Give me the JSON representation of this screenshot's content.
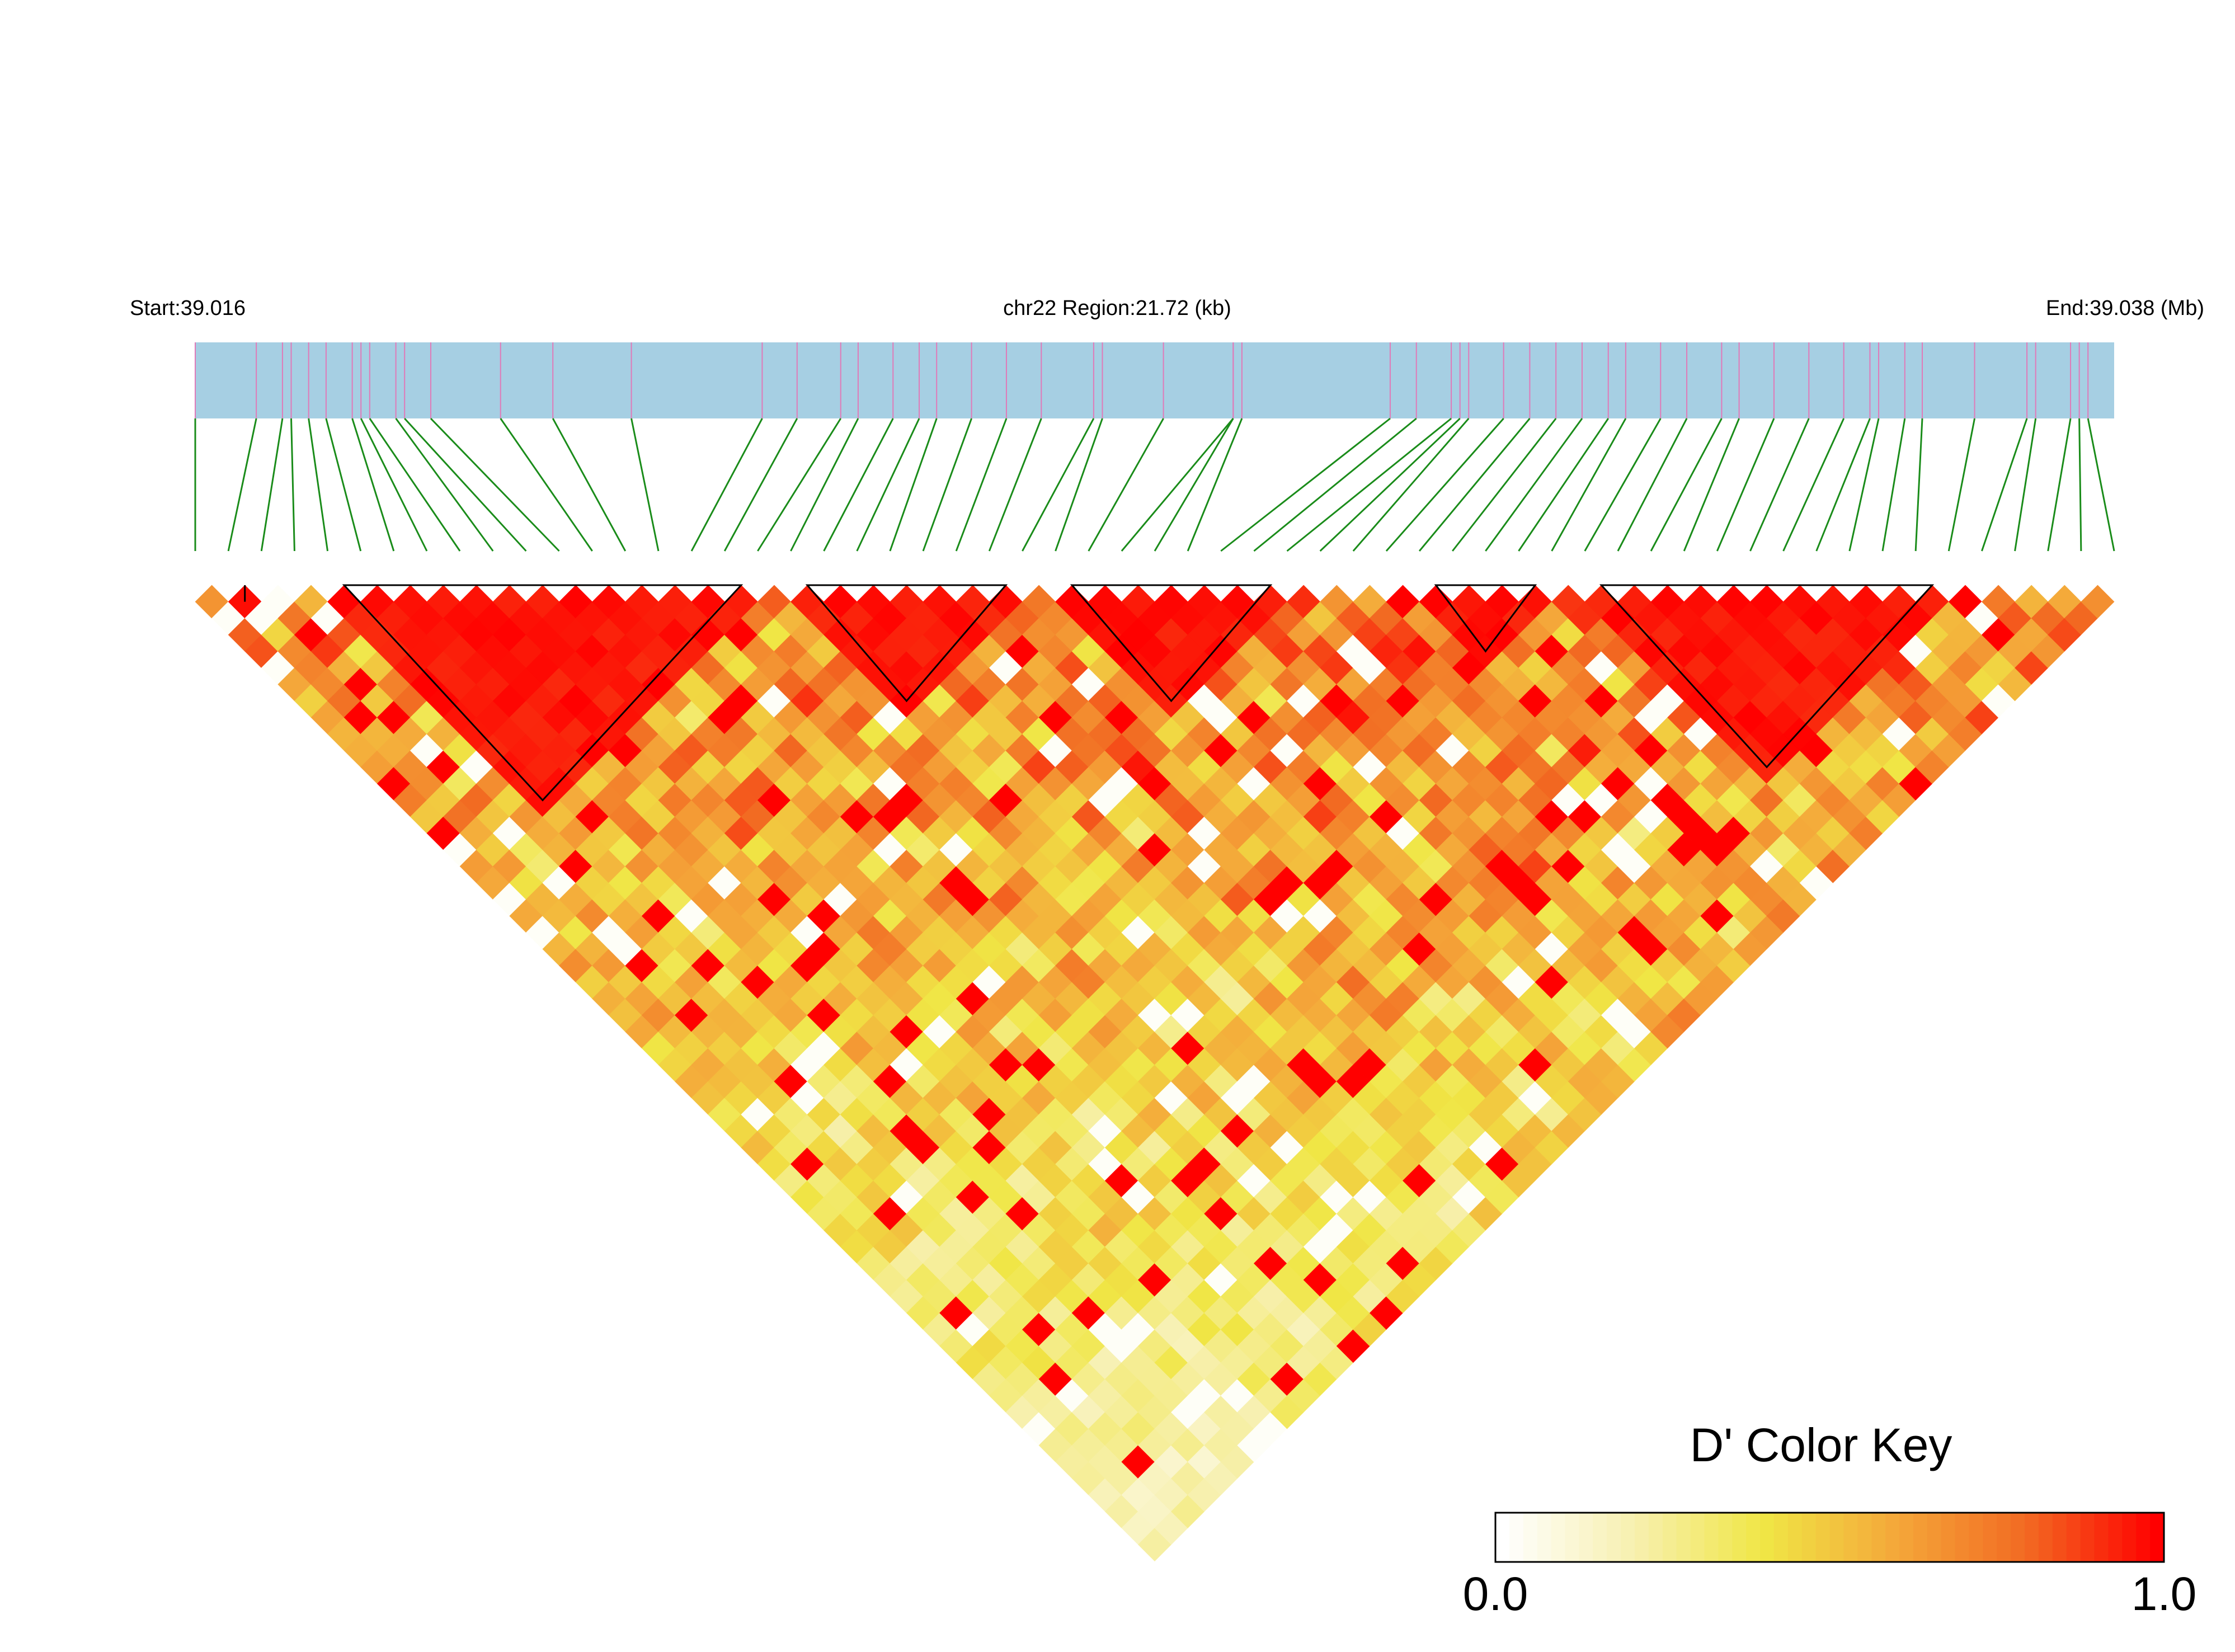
{
  "header": {
    "start_label": "Start:39.016",
    "region_label": "chr22 Region:21.72 (kb)",
    "end_label": "End:39.038 (Mb)"
  },
  "chart_data": {
    "type": "heatmap",
    "subtype": "linkage-disequilibrium-triangle",
    "metric": "D'",
    "chromosome": "chr22",
    "region_start_mb": 39.016,
    "region_end_mb": 39.038,
    "region_length_kb": 21.72,
    "snp_count": 59,
    "snp_positions_mb": [
      39.016,
      39.0167,
      39.017,
      39.0171,
      39.0173,
      39.0175,
      39.0178,
      39.0179,
      39.018,
      39.0183,
      39.0184,
      39.0187,
      39.0195,
      39.0201,
      39.021,
      39.0225,
      39.0229,
      39.0234,
      39.0236,
      39.024,
      39.0243,
      39.0245,
      39.0249,
      39.0253,
      39.0257,
      39.0263,
      39.0264,
      39.0271,
      39.0279,
      39.0279,
      39.028,
      39.0297,
      39.03,
      39.0304,
      39.0305,
      39.0306,
      39.031,
      39.0313,
      39.0316,
      39.0319,
      39.0322,
      39.0324,
      39.0328,
      39.0331,
      39.0335,
      39.0337,
      39.0341,
      39.0345,
      39.0349,
      39.0352,
      39.0353,
      39.0356,
      39.0358,
      39.0364,
      39.037,
      39.0371,
      39.0375,
      39.0376,
      39.0377
    ],
    "haplotype_blocks": [
      {
        "first_snp": 1,
        "last_snp": 2
      },
      {
        "first_snp": 4,
        "last_snp": 17
      },
      {
        "first_snp": 18,
        "last_snp": 25
      },
      {
        "first_snp": 26,
        "last_snp": 33
      },
      {
        "first_snp": 37,
        "last_snp": 41
      },
      {
        "first_snp": 42,
        "last_snp": 53
      }
    ],
    "color_key": {
      "title": "D' Color Key",
      "min_label": "0.0",
      "max_label": "1.0",
      "min": 0.0,
      "max": 1.0,
      "stops": [
        "#ffffff",
        "#f7f0b0",
        "#f0e645",
        "#f4a83a",
        "#f26a22",
        "#ff0000"
      ]
    },
    "colors": {
      "track_fill": "#a6cfe3",
      "snp_tick": "#e07ab8",
      "connector": "#1a8c1a",
      "block_outline": "#000000"
    },
    "matrix_seed": 20240517
  }
}
